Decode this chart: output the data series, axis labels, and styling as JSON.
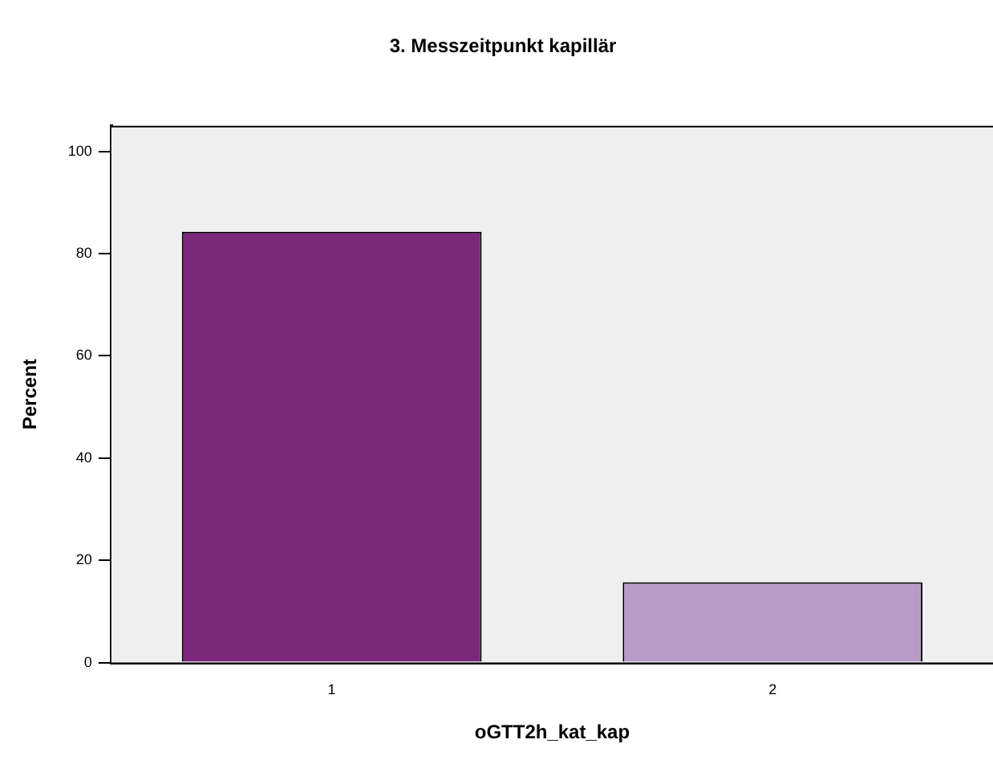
{
  "chart_data": {
    "type": "bar",
    "title": "3. Messzeitpunkt kapillär",
    "xlabel": "oGTT2h_kat_kap",
    "ylabel": "Percent",
    "categories": [
      "1",
      "2"
    ],
    "values": [
      84.3,
      15.7
    ],
    "colors": [
      "#7b287b",
      "#b89bc9"
    ],
    "ylim": [
      0,
      105
    ],
    "yticks": [
      0,
      20,
      40,
      60,
      80,
      100
    ],
    "grid": false,
    "legend": false
  }
}
